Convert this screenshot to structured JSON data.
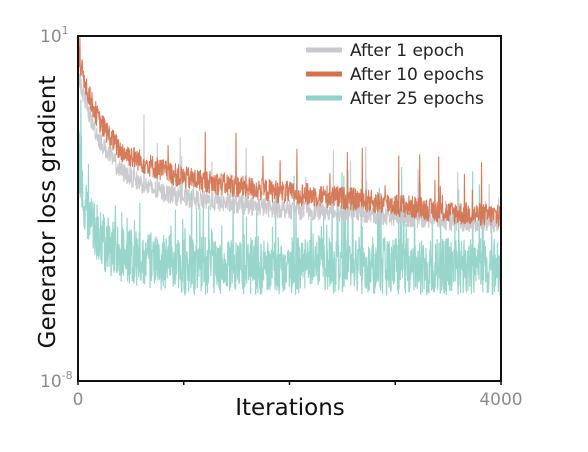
{
  "chart_data": {
    "type": "line",
    "title": "",
    "xlabel": "Iterations",
    "ylabel": "Generator loss gradient",
    "x_scale": "linear",
    "y_scale": "log",
    "xlim": [
      0,
      4000
    ],
    "ylim": [
      1e-08,
      10
    ],
    "x_tick_labels": [
      "0",
      "4000"
    ],
    "x_ticks": [
      0,
      1000,
      2000,
      3000,
      4000
    ],
    "y_tick_labels": [
      {
        "base": "10",
        "exp": "1"
      },
      {
        "base": "10",
        "exp": "-8"
      }
    ],
    "grid": false,
    "legend_position": "top-right",
    "series": [
      {
        "name": "After 1 epoch",
        "color": "#c8c8cc",
        "x": [
          0,
          100,
          200,
          400,
          700,
          1000,
          1500,
          2000,
          2500,
          3000,
          3500,
          4000
        ],
        "y": [
          1.0,
          0.1,
          0.02,
          0.003,
          0.001,
          0.0006,
          0.0004,
          0.0003,
          0.00025,
          0.0002,
          0.00015,
          0.00012
        ]
      },
      {
        "name": "After 10 epochs",
        "color": "#d4714d",
        "x": [
          0,
          100,
          200,
          400,
          700,
          1000,
          1500,
          2000,
          2500,
          3000,
          3500,
          4000
        ],
        "y": [
          3.0,
          0.3,
          0.06,
          0.01,
          0.004,
          0.002,
          0.0012,
          0.0008,
          0.0006,
          0.0004,
          0.00025,
          0.0002
        ]
      },
      {
        "name": "After 25 epochs",
        "color": "#8fd3c8",
        "x": [
          0,
          50,
          100,
          200,
          400,
          700,
          1000,
          1500,
          2000,
          2500,
          3000,
          3500,
          4000
        ],
        "y": [
          0.01,
          0.0005,
          0.0002,
          5e-05,
          2e-05,
          1.5e-05,
          1e-05,
          1e-05,
          1e-05,
          1e-05,
          1e-05,
          1e-05,
          1e-05
        ]
      }
    ]
  }
}
